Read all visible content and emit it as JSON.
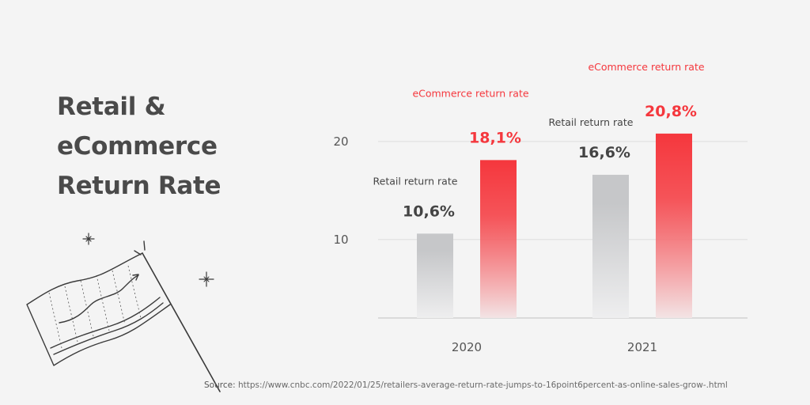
{
  "title_lines": [
    "Retail &",
    "eCommerce",
    "Return Rate"
  ],
  "source": {
    "label": "Source:",
    "url": "https://www.cnbc.com/2022/01/25/retailers-average-return-rate-jumps-to-16point6percent-as-online-sales-grow-.html"
  },
  "colors": {
    "retail": "#c6c7c9",
    "ecommerce": "#f5373d",
    "grid": "#e0e0e0",
    "axis": "#c9c9c9"
  },
  "chart_data": {
    "type": "bar",
    "categories": [
      "2020",
      "2021"
    ],
    "series": [
      {
        "name": "Retail return rate",
        "values": [
          10.6,
          16.6
        ],
        "labels": [
          "10,6%",
          "16,6%"
        ]
      },
      {
        "name": "eCommerce return rate",
        "values": [
          18.1,
          20.8
        ],
        "labels": [
          "18,1%",
          "20,8%"
        ]
      }
    ],
    "yticks": [
      10,
      20
    ],
    "ylim": [
      2,
      22
    ],
    "grid": true,
    "legend": "none"
  }
}
